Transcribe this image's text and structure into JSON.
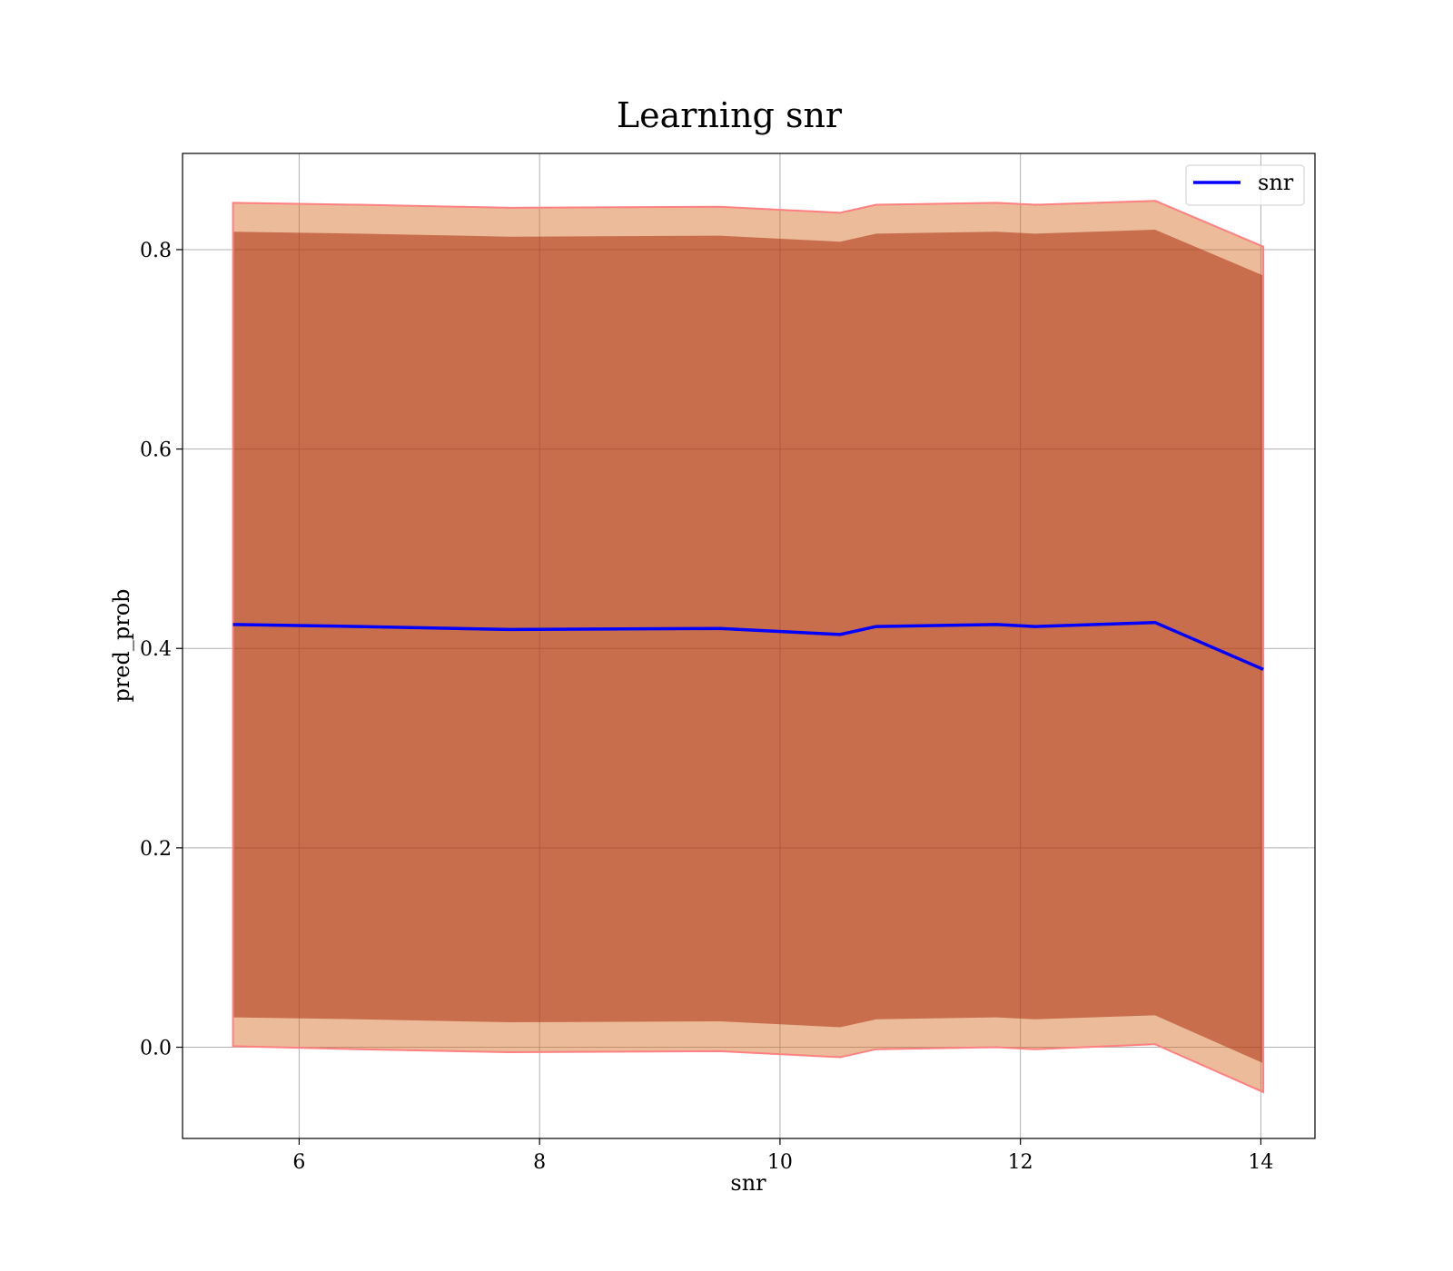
{
  "chart_data": {
    "type": "line",
    "title": "Learning snr",
    "xlabel": "snr",
    "ylabel": "pred_prob",
    "xlim": [
      5.03,
      14.45
    ],
    "ylim": [
      -0.0915,
      0.8965
    ],
    "xticks": [
      6,
      8,
      10,
      12,
      14
    ],
    "yticks": [
      0.0,
      0.2,
      0.4,
      0.6,
      0.8
    ],
    "xtick_labels": [
      "6",
      "8",
      "10",
      "12",
      "14"
    ],
    "ytick_labels": [
      "0.0",
      "0.2",
      "0.4",
      "0.6",
      "0.8"
    ],
    "grid": true,
    "legend": {
      "position": "top-right",
      "entries": [
        "snr"
      ]
    },
    "x": [
      5.45,
      6.5,
      7.75,
      9.5,
      10.5,
      10.8,
      11.8,
      12.12,
      13.12,
      14.02
    ],
    "series": [
      {
        "name": "snr",
        "color": "#0000ff",
        "values": [
          0.424,
          0.422,
          0.419,
          0.42,
          0.414,
          0.422,
          0.424,
          0.422,
          0.426,
          0.379
        ]
      }
    ],
    "bands": [
      {
        "color": "#8b0000",
        "opacity": 0.55,
        "lower": [
          0.03,
          0.028,
          0.025,
          0.026,
          0.02,
          0.028,
          0.03,
          0.028,
          0.032,
          -0.016
        ],
        "upper": [
          0.818,
          0.816,
          0.813,
          0.814,
          0.808,
          0.816,
          0.818,
          0.816,
          0.82,
          0.774
        ]
      },
      {
        "color": "#d2691e",
        "opacity": 0.45,
        "lower": [
          0.001,
          -0.002,
          -0.005,
          -0.004,
          -0.01,
          -0.002,
          0.0,
          -0.002,
          0.003,
          -0.045
        ],
        "upper": [
          0.847,
          0.845,
          0.842,
          0.843,
          0.837,
          0.845,
          0.847,
          0.845,
          0.849,
          0.803
        ]
      }
    ],
    "band_edge_color": "#ff8080"
  }
}
